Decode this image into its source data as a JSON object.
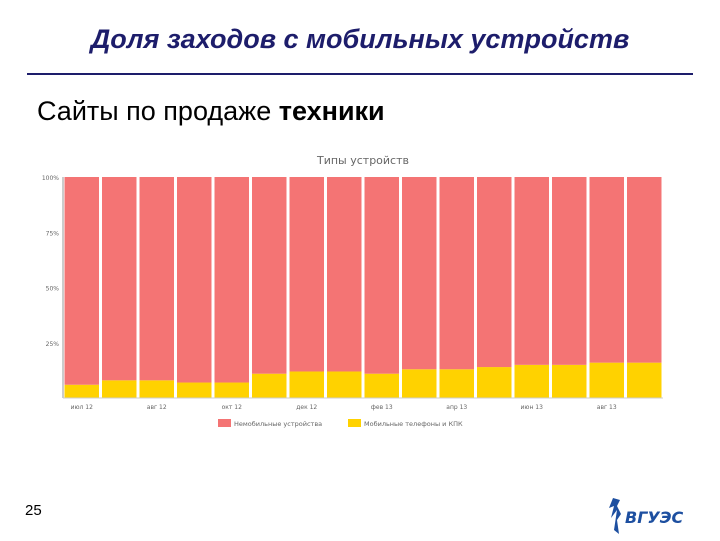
{
  "slide": {
    "title": "Доля заходов с мобильных устройств",
    "subtitle_prefix": "Сайты по продаже ",
    "subtitle_bold": "техники",
    "page_number": "25",
    "logo_text": "ВГУЭС"
  },
  "chart_data": {
    "type": "bar",
    "stacked": true,
    "title": "Типы устройств",
    "ylim": [
      0,
      100
    ],
    "yticks": [
      "100%",
      "75%",
      "50%",
      "25%"
    ],
    "ytick_values": [
      100,
      75,
      50,
      25
    ],
    "xtick_labels": [
      "июл 12",
      "авг 12",
      "окт 12",
      "дек 12",
      "фев 13",
      "апр 13",
      "июн 13",
      "авг 13"
    ],
    "bar_count": 16,
    "series": [
      {
        "name": "Немобильные устройства",
        "color": "#f47474",
        "values": [
          94,
          92,
          92,
          93,
          93,
          89,
          88,
          88,
          89,
          87,
          87,
          86,
          85,
          85,
          84,
          84
        ]
      },
      {
        "name": "Мобильные телефоны и КПК",
        "color": "#ffd200",
        "values": [
          6,
          8,
          8,
          7,
          7,
          11,
          12,
          12,
          11,
          13,
          13,
          14,
          15,
          15,
          16,
          16
        ]
      }
    ],
    "grid": false,
    "legend_position": "bottom"
  }
}
